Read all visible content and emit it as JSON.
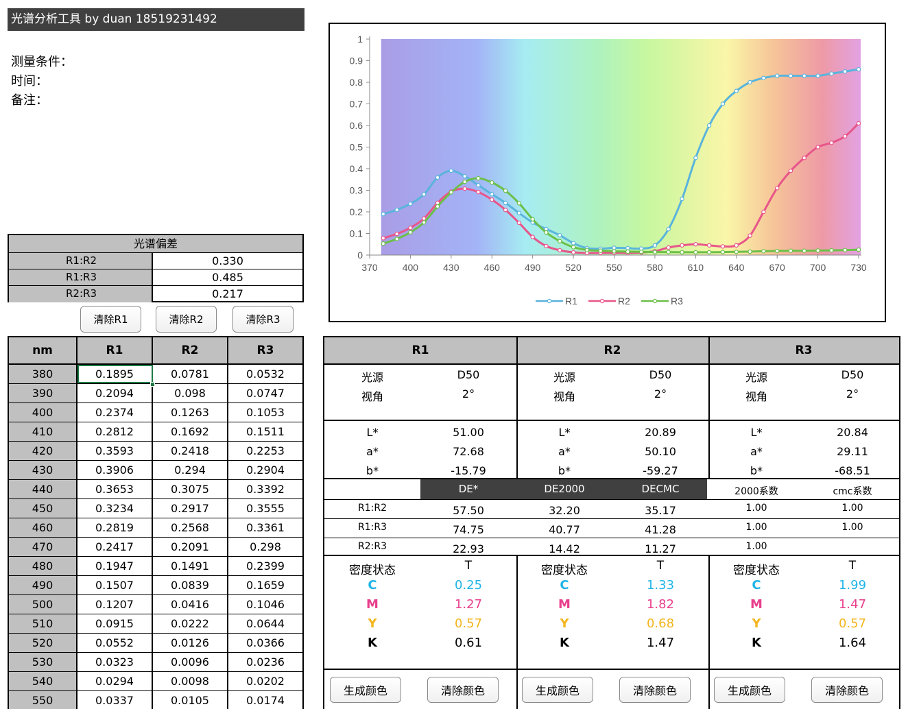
{
  "title": "光谱分析工具 by duan 18519231492",
  "conditions": {
    "measure": "测量条件：",
    "time": "时间：",
    "note": "备注："
  },
  "deviation": {
    "header": "光谱偏差",
    "rows": [
      {
        "label": "R1:R2",
        "value": "0.330"
      },
      {
        "label": "R1:R3",
        "value": "0.485"
      },
      {
        "label": "R2:R3",
        "value": "0.217"
      }
    ]
  },
  "clear_buttons": [
    "清除R1",
    "清除R2",
    "清除R3"
  ],
  "chart_data": {
    "type": "line",
    "x": [
      380,
      390,
      400,
      410,
      420,
      430,
      440,
      450,
      460,
      470,
      480,
      490,
      500,
      510,
      520,
      530,
      540,
      550,
      560,
      570,
      580,
      590,
      600,
      610,
      620,
      630,
      640,
      650,
      660,
      670,
      680,
      690,
      700,
      710,
      720,
      730
    ],
    "series": [
      {
        "name": "R1",
        "color": "#5ab4dc",
        "values": [
          0.1895,
          0.2094,
          0.2374,
          0.2812,
          0.3593,
          0.3906,
          0.3653,
          0.3234,
          0.2819,
          0.2417,
          0.1947,
          0.1507,
          0.1207,
          0.0915,
          0.0552,
          0.0323,
          0.0294,
          0.0337,
          0.032,
          0.03,
          0.045,
          0.12,
          0.26,
          0.45,
          0.6,
          0.7,
          0.76,
          0.8,
          0.82,
          0.83,
          0.83,
          0.83,
          0.83,
          0.84,
          0.85,
          0.86
        ]
      },
      {
        "name": "R2",
        "color": "#e8558a",
        "values": [
          0.0781,
          0.098,
          0.1263,
          0.1692,
          0.2418,
          0.294,
          0.3075,
          0.2917,
          0.2568,
          0.2091,
          0.1491,
          0.0839,
          0.0416,
          0.0222,
          0.0126,
          0.0096,
          0.0098,
          0.0105,
          0.01,
          0.012,
          0.018,
          0.035,
          0.045,
          0.05,
          0.045,
          0.04,
          0.045,
          0.09,
          0.2,
          0.31,
          0.39,
          0.45,
          0.5,
          0.52,
          0.55,
          0.61
        ]
      },
      {
        "name": "R3",
        "color": "#6cc04a",
        "values": [
          0.0532,
          0.0747,
          0.1053,
          0.1511,
          0.2253,
          0.2904,
          0.3392,
          0.3555,
          0.3361,
          0.298,
          0.2399,
          0.1659,
          0.1046,
          0.0644,
          0.0366,
          0.0236,
          0.0202,
          0.0174,
          0.016,
          0.015,
          0.014,
          0.014,
          0.013,
          0.013,
          0.013,
          0.014,
          0.015,
          0.016,
          0.018,
          0.019,
          0.02,
          0.02,
          0.021,
          0.022,
          0.023,
          0.025
        ]
      }
    ],
    "xticks": [
      "370",
      "400",
      "430",
      "460",
      "490",
      "520",
      "550",
      "580",
      "610",
      "640",
      "670",
      "700",
      "730"
    ],
    "yticks": [
      "0",
      "0.1",
      "0.2",
      "0.3",
      "0.4",
      "0.5",
      "0.6",
      "0.7",
      "0.8",
      "0.9",
      "1"
    ],
    "xlim": [
      370,
      730
    ],
    "ylim": [
      0,
      1
    ],
    "legend": "bottom"
  },
  "table": {
    "headers": [
      "nm",
      "R1",
      "R2",
      "R3"
    ],
    "rows": [
      [
        "380",
        "0.1895",
        "0.0781",
        "0.0532"
      ],
      [
        "390",
        "0.2094",
        "0.098",
        "0.0747"
      ],
      [
        "400",
        "0.2374",
        "0.1263",
        "0.1053"
      ],
      [
        "410",
        "0.2812",
        "0.1692",
        "0.1511"
      ],
      [
        "420",
        "0.3593",
        "0.2418",
        "0.2253"
      ],
      [
        "430",
        "0.3906",
        "0.294",
        "0.2904"
      ],
      [
        "440",
        "0.3653",
        "0.3075",
        "0.3392"
      ],
      [
        "450",
        "0.3234",
        "0.2917",
        "0.3555"
      ],
      [
        "460",
        "0.2819",
        "0.2568",
        "0.3361"
      ],
      [
        "470",
        "0.2417",
        "0.2091",
        "0.298"
      ],
      [
        "480",
        "0.1947",
        "0.1491",
        "0.2399"
      ],
      [
        "490",
        "0.1507",
        "0.0839",
        "0.1659"
      ],
      [
        "500",
        "0.1207",
        "0.0416",
        "0.1046"
      ],
      [
        "510",
        "0.0915",
        "0.0222",
        "0.0644"
      ],
      [
        "520",
        "0.0552",
        "0.0126",
        "0.0366"
      ],
      [
        "530",
        "0.0323",
        "0.0096",
        "0.0236"
      ],
      [
        "540",
        "0.0294",
        "0.0098",
        "0.0202"
      ],
      [
        "550",
        "0.0337",
        "0.0105",
        "0.0174"
      ]
    ]
  },
  "panels": [
    {
      "name": "R1",
      "illum_label": "光源",
      "illum": "D50",
      "angle_label": "视角",
      "angle": "2°",
      "L": "51.00",
      "a": "72.68",
      "b": "-15.79",
      "density_label": "密度状态",
      "density_mode": "T",
      "C": "0.25",
      "M": "1.27",
      "Y": "0.57",
      "K": "0.61"
    },
    {
      "name": "R2",
      "illum_label": "光源",
      "illum": "D50",
      "angle_label": "视角",
      "angle": "2°",
      "L": "20.89",
      "a": "50.10",
      "b": "-59.27",
      "density_label": "密度状态",
      "density_mode": "T",
      "C": "1.33",
      "M": "1.82",
      "Y": "0.68",
      "K": "1.47"
    },
    {
      "name": "R3",
      "illum_label": "光源",
      "illum": "D50",
      "angle_label": "视角",
      "angle": "2°",
      "L": "20.84",
      "a": "29.11",
      "b": "-68.51",
      "density_label": "密度状态",
      "density_mode": "T",
      "C": "1.99",
      "M": "1.47",
      "Y": "0.57",
      "K": "1.64"
    }
  ],
  "lab_labels": {
    "L": "L*",
    "a": "a*",
    "b": "b*"
  },
  "cmyk_labels": {
    "C": "C",
    "M": "M",
    "Y": "Y",
    "K": "K"
  },
  "colors": {
    "C": "#21b5e6",
    "M": "#e83e8c",
    "Y": "#f2b51c",
    "K": "#000000"
  },
  "de": {
    "headers": [
      "DE*",
      "DE2000",
      "DECMC"
    ],
    "coef_headers": [
      "2000系数",
      "cmc系数"
    ],
    "rows": [
      {
        "label": "R1:R2",
        "de": "57.50",
        "de2000": "32.20",
        "decmc": "35.17",
        "k2000": "1.00",
        "kcmc": "1.00"
      },
      {
        "label": "R1:R3",
        "de": "74.75",
        "de2000": "40.77",
        "decmc": "41.28",
        "k2000": "1.00",
        "kcmc": "1.00"
      },
      {
        "label": "R2:R3",
        "de": "22.93",
        "de2000": "14.42",
        "decmc": "11.27",
        "k2000": "1.00",
        "kcmc": ""
      }
    ]
  },
  "panel_buttons": {
    "generate": "生成颜色",
    "clear": "清除颜色"
  }
}
